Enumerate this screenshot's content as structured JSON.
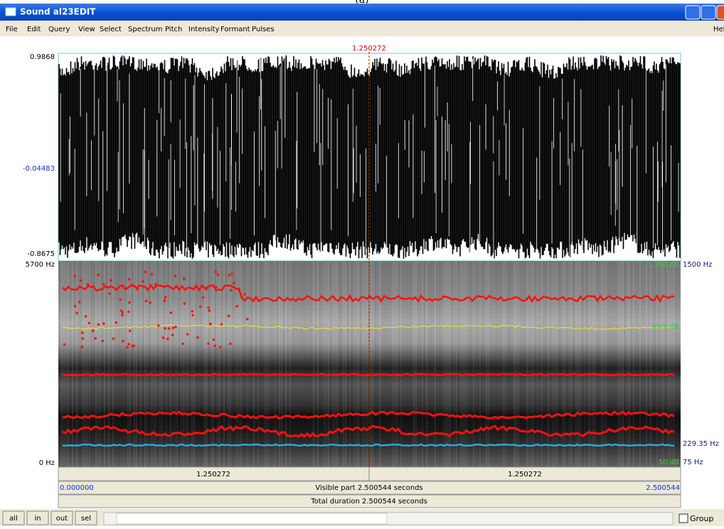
{
  "caption": "(a)",
  "window": {
    "title": "Sound al23EDIT"
  },
  "menu": [
    "File",
    "Edit",
    "Query",
    "View",
    "Select",
    "Spectrum",
    "Pitch",
    "Intensity",
    "Formant",
    "Pulses",
    "Help"
  ],
  "cursor": {
    "time": "1.250272"
  },
  "waveform": {
    "max": "0.9868",
    "cursor_value": "-0.04483",
    "min": "-0.8675"
  },
  "spectrogram": {
    "top_freq": "5700 Hz",
    "bottom_freq": "0 Hz",
    "pitch_top": "1500 Hz",
    "pitch_value": "229.35 Hz",
    "pitch_bottom": "75 Hz",
    "intensity_top": "100 dB",
    "intensity_value": "39.9 dB",
    "intensity_bottom": "50 dB"
  },
  "time_bar": {
    "left_segment": "1.250272",
    "right_segment": "1.250272",
    "start": "0.000000",
    "visible": "Visible part 2.500544 seconds",
    "end": "2.500544",
    "total": "Total duration 2.500544 seconds"
  },
  "buttons": [
    "all",
    "in",
    "out",
    "sel"
  ],
  "group_label": "Group"
}
